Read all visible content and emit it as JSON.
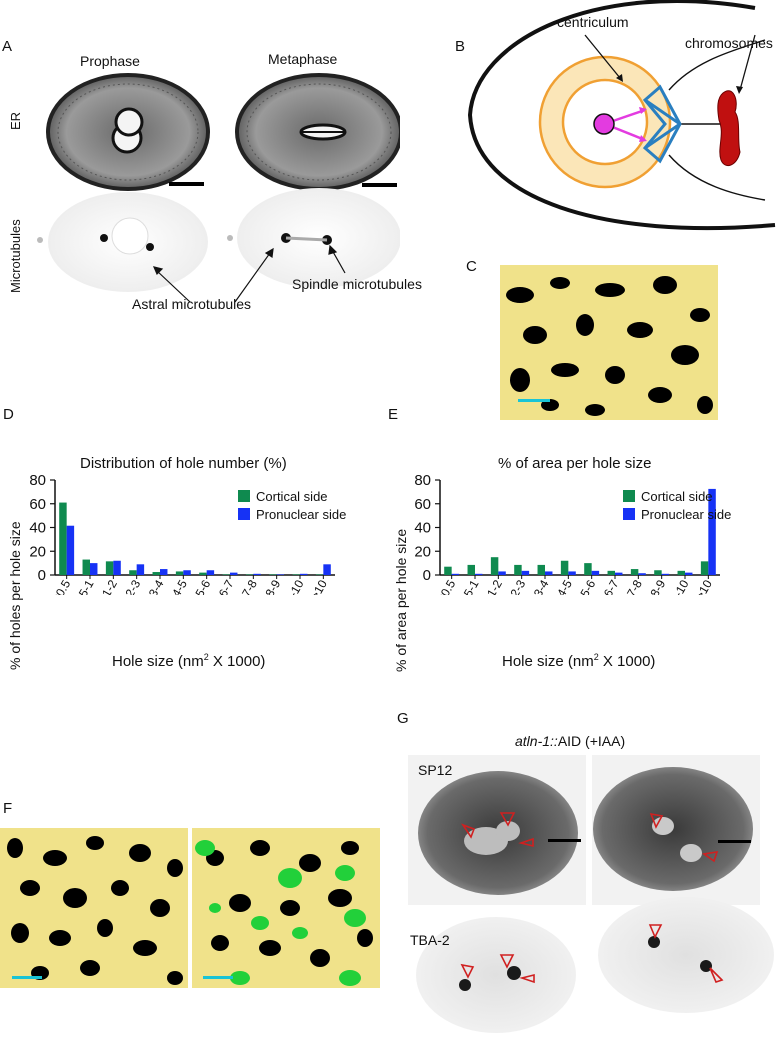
{
  "panel_a": {
    "label": "A",
    "col_prophase": "Prophase",
    "col_metaphase": "Metaphase",
    "row_er": "ER",
    "row_mt": "Microtubules",
    "ann_astral": "Astral microtubules",
    "ann_spindle": "Spindle microtubules"
  },
  "panel_b": {
    "label": "B",
    "centriculum": "centriculum",
    "chromosomes": "chromosomes",
    "colors": {
      "ring": "#f0a033",
      "fill": "#fbe6b8",
      "centrosome": "#e33be0",
      "spindle": "#2a7fc0",
      "chromo": "#c01010"
    }
  },
  "panel_c": {
    "label": "C"
  },
  "panel_f": {
    "label": "F"
  },
  "panel_g": {
    "label": "G",
    "title_italic": "atln-1::",
    "title_rest": "AID (+IAA)",
    "row1": "SP12",
    "row2": "TBA-2"
  },
  "chart_d": {
    "label": "D",
    "type": "bar",
    "title": "Distribution of hole number (%)",
    "xlabel_pre": "Hole size (nm",
    "xlabel_sup": "2",
    "xlabel_post": " X 1000)",
    "ylabel": "% of holes per hole size",
    "ylim": [
      0,
      80
    ],
    "yticks": [
      "0",
      "20",
      "40",
      "60",
      "80"
    ],
    "categories": [
      "<0.5",
      "0.5-1",
      "1-2",
      "2-3",
      "3-4",
      "4-5",
      "5-6",
      "6-7",
      "7-8",
      "8-9",
      "9-10",
      ">10"
    ],
    "series": [
      {
        "name": "Cortical side",
        "color": "#0f8a4f",
        "values": [
          61,
          13,
          11.5,
          4,
          2.5,
          3,
          2,
          0.5,
          0.5,
          0.5,
          0.5,
          0.5
        ]
      },
      {
        "name": "Pronuclear side",
        "color": "#1632f5",
        "values": [
          41.5,
          10,
          12,
          9,
          5,
          4,
          4,
          2,
          1,
          0.5,
          1,
          9
        ]
      }
    ]
  },
  "chart_e": {
    "label": "E",
    "type": "bar",
    "title": "% of area per hole size",
    "xlabel_pre": "Hole size (nm",
    "xlabel_sup": "2",
    "xlabel_post": " X 1000)",
    "ylabel": "% of area per hole size",
    "ylim": [
      0,
      80
    ],
    "yticks": [
      "0",
      "20",
      "40",
      "60",
      "80"
    ],
    "categories": [
      "<0.5",
      "0.5-1",
      "1-2",
      "2-3",
      "3-4",
      "4-5",
      "5-6",
      "6-7",
      "7-8",
      "8-9",
      "9-10",
      ">10"
    ],
    "series": [
      {
        "name": "Cortical side",
        "color": "#0f8a4f",
        "values": [
          7,
          8.5,
          15,
          8.5,
          8.5,
          12,
          10,
          3.5,
          5,
          4,
          3.5,
          11.5
        ]
      },
      {
        "name": "Pronuclear side",
        "color": "#1632f5",
        "values": [
          1,
          1,
          3,
          3.5,
          3,
          3,
          3.5,
          2,
          1.5,
          1,
          2,
          72.5
        ]
      }
    ]
  }
}
